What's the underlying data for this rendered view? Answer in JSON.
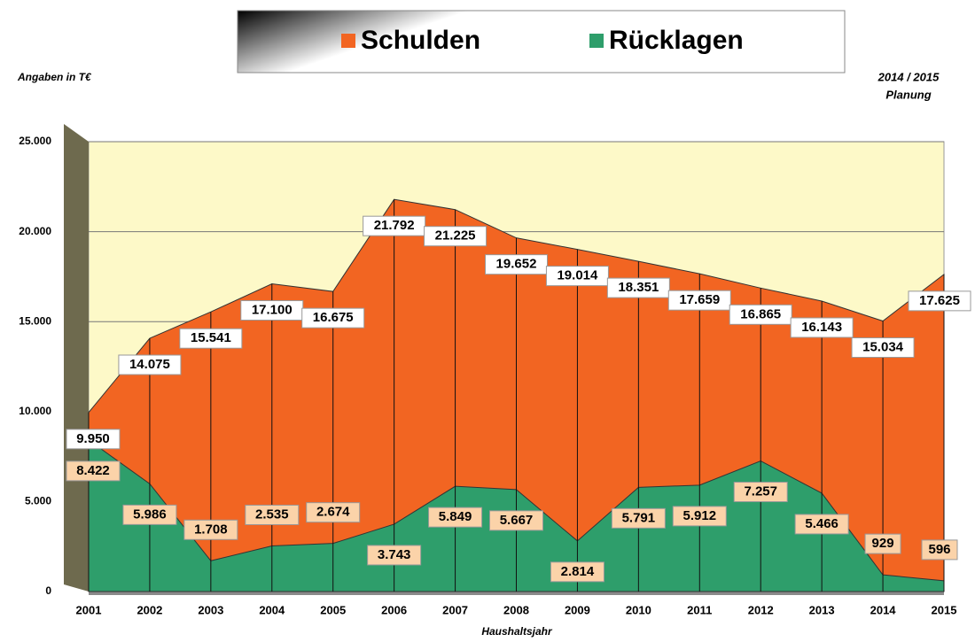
{
  "chart_data": {
    "type": "area",
    "unit_label": "Angaben in T€",
    "note_line1": "2014 / 2015",
    "note_line2": "Planung",
    "xlabel": "Haushaltsjahr",
    "categories": [
      "2001",
      "2002",
      "2003",
      "2004",
      "2005",
      "2006",
      "2007",
      "2008",
      "2009",
      "2010",
      "2011",
      "2012",
      "2013",
      "2014",
      "2015"
    ],
    "series": [
      {
        "name": "Schulden",
        "color": "#f26522",
        "values": [
          9950,
          14075,
          15541,
          17100,
          16675,
          21792,
          21225,
          19652,
          19014,
          18351,
          17659,
          16865,
          16143,
          15034,
          17625
        ],
        "value_labels": [
          "9.950",
          "14.075",
          "15.541",
          "17.100",
          "16.675",
          "21.792",
          "21.225",
          "19.652",
          "19.014",
          "18.351",
          "17.659",
          "16.865",
          "16.143",
          "15.034",
          "17.625"
        ]
      },
      {
        "name": "Rücklagen",
        "color": "#2e9e6b",
        "values": [
          8422,
          5986,
          1708,
          2535,
          2674,
          3743,
          5849,
          5667,
          2814,
          5791,
          5912,
          7257,
          5466,
          929,
          596
        ],
        "value_labels": [
          "8.422",
          "5.986",
          "1.708",
          "2.535",
          "2.674",
          "3.743",
          "5.849",
          "5.667",
          "2.814",
          "5.791",
          "5.912",
          "7.257",
          "5.466",
          "929",
          "596"
        ]
      }
    ],
    "ylim": [
      0,
      25000
    ],
    "yticks": [
      0,
      {
        "value": 5000,
        "label": "5.000"
      },
      {
        "value": 10000,
        "label": "10.000"
      },
      {
        "value": 15000,
        "label": "15.000"
      },
      {
        "value": 20000,
        "label": "20.000"
      },
      {
        "value": 25000,
        "label": "25.000"
      }
    ],
    "grid": true,
    "legend": "top"
  }
}
